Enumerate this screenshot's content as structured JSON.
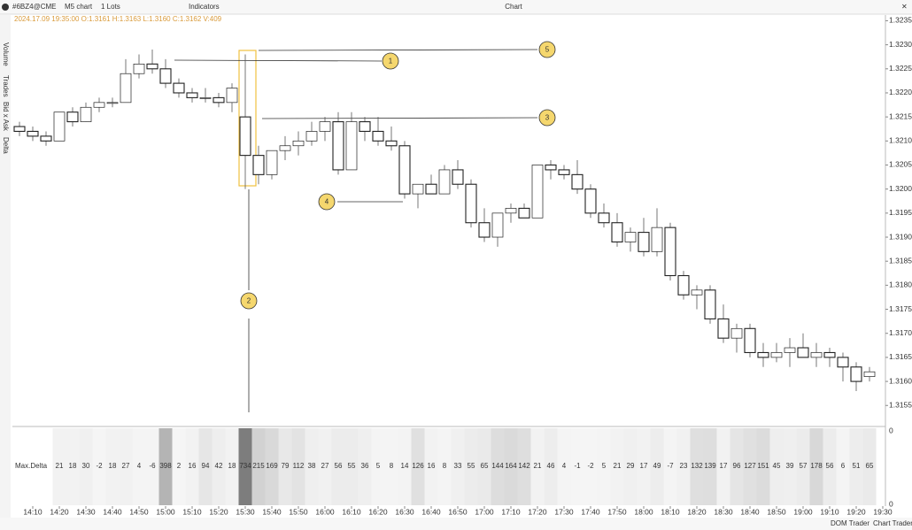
{
  "toolbar": {
    "symbol": "#6BZ4@CME",
    "timeframe": "M5 chart",
    "lots": "1 Lots",
    "indicators": "Indicators",
    "window_title": "Chart"
  },
  "info": "2024.17.09 19:35:00 O:1.3161 H:1.3163 L:1.3160 C:1.3162 V:409",
  "sidebar": [
    "Volume",
    "Trades",
    "Bid x Ask",
    "Delta"
  ],
  "annotations": [
    "1",
    "2",
    "3",
    "4",
    "5"
  ],
  "footer": [
    "DOM Trader",
    "Chart Trader"
  ],
  "chart_data": [
    {
      "type": "candlestick",
      "x": [
        "14:05",
        "14:10",
        "14:15",
        "14:20",
        "14:25",
        "14:30",
        "14:35",
        "14:40",
        "14:45",
        "14:50",
        "14:55",
        "15:00",
        "15:05",
        "15:10",
        "15:15",
        "15:20",
        "15:25",
        "15:30",
        "15:35",
        "15:40",
        "15:45",
        "15:50",
        "15:55",
        "16:00",
        "16:05",
        "16:10",
        "16:15",
        "16:20",
        "16:25",
        "16:30",
        "16:35",
        "16:40",
        "16:45",
        "16:50",
        "16:55",
        "17:00",
        "17:05",
        "17:10",
        "17:15",
        "17:20",
        "17:25",
        "17:30",
        "17:35",
        "17:40",
        "17:45",
        "17:50",
        "17:55",
        "18:00",
        "18:05",
        "18:10",
        "18:15",
        "18:20",
        "18:25",
        "18:30",
        "18:35",
        "18:40",
        "18:45",
        "18:50",
        "18:55",
        "19:00",
        "19:05",
        "19:10",
        "19:15",
        "19:20",
        "19:25"
      ],
      "open": [
        1.3213,
        1.3212,
        1.3211,
        1.321,
        1.3216,
        1.3214,
        1.3217,
        1.3218,
        1.3218,
        1.3224,
        1.3226,
        1.3225,
        1.3222,
        1.322,
        1.3219,
        1.3219,
        1.3218,
        1.3215,
        1.3207,
        1.3203,
        1.3208,
        1.3209,
        1.321,
        1.3212,
        1.3214,
        1.3204,
        1.3214,
        1.3212,
        1.321,
        1.3209,
        1.3199,
        1.3201,
        1.3199,
        1.3204,
        1.3201,
        1.3193,
        1.319,
        1.3195,
        1.3196,
        1.3194,
        1.3205,
        1.3204,
        1.3203,
        1.32,
        1.3195,
        1.3193,
        1.3189,
        1.3191,
        1.3187,
        1.3192,
        1.3182,
        1.3178,
        1.3179,
        1.3173,
        1.3169,
        1.3171,
        1.3166,
        1.3165,
        1.3166,
        1.3167,
        1.3165,
        1.3166,
        1.3165,
        1.3163,
        1.3161
      ],
      "high": [
        1.3214,
        1.3213,
        1.3212,
        1.3216,
        1.3217,
        1.3218,
        1.3219,
        1.3219,
        1.3227,
        1.3228,
        1.3229,
        1.3227,
        1.3223,
        1.3221,
        1.3221,
        1.322,
        1.3222,
        1.3228,
        1.3209,
        1.3208,
        1.3211,
        1.3212,
        1.3214,
        1.3215,
        1.3216,
        1.3216,
        1.3215,
        1.3215,
        1.3213,
        1.321,
        1.3201,
        1.3203,
        1.3205,
        1.3206,
        1.3202,
        1.3196,
        1.3195,
        1.3197,
        1.3197,
        1.3205,
        1.3206,
        1.3205,
        1.3206,
        1.3201,
        1.3197,
        1.3195,
        1.3192,
        1.3194,
        1.3196,
        1.3193,
        1.3183,
        1.318,
        1.318,
        1.3176,
        1.3172,
        1.3172,
        1.3168,
        1.3168,
        1.3169,
        1.317,
        1.3168,
        1.3167,
        1.3166,
        1.3164,
        1.3163
      ],
      "low": [
        1.3211,
        1.321,
        1.3209,
        1.321,
        1.3213,
        1.3214,
        1.3216,
        1.3217,
        1.3218,
        1.3223,
        1.3224,
        1.3221,
        1.3219,
        1.3218,
        1.3218,
        1.3217,
        1.3216,
        1.32,
        1.3201,
        1.3202,
        1.3206,
        1.3207,
        1.3209,
        1.321,
        1.3203,
        1.3204,
        1.321,
        1.3209,
        1.3208,
        1.3198,
        1.3196,
        1.3199,
        1.3199,
        1.32,
        1.3192,
        1.3189,
        1.3188,
        1.3193,
        1.3194,
        1.3194,
        1.3202,
        1.3202,
        1.3199,
        1.3194,
        1.3192,
        1.3188,
        1.3187,
        1.3186,
        1.3186,
        1.3181,
        1.3177,
        1.3175,
        1.3172,
        1.3168,
        1.3166,
        1.3165,
        1.3163,
        1.3164,
        1.3163,
        1.3165,
        1.3163,
        1.3163,
        1.316,
        1.3158,
        1.316
      ],
      "close": [
        1.3212,
        1.3211,
        1.321,
        1.3216,
        1.3214,
        1.3217,
        1.3218,
        1.3218,
        1.3224,
        1.3226,
        1.3225,
        1.3222,
        1.322,
        1.3219,
        1.3219,
        1.3218,
        1.3221,
        1.3207,
        1.3203,
        1.3208,
        1.3209,
        1.321,
        1.3212,
        1.3214,
        1.3204,
        1.3214,
        1.3212,
        1.321,
        1.3209,
        1.3199,
        1.3201,
        1.3199,
        1.3204,
        1.3201,
        1.3193,
        1.319,
        1.3195,
        1.3196,
        1.3194,
        1.3205,
        1.3204,
        1.3203,
        1.32,
        1.3195,
        1.3193,
        1.3189,
        1.3191,
        1.3187,
        1.3192,
        1.3182,
        1.3178,
        1.3179,
        1.3173,
        1.3169,
        1.3171,
        1.3166,
        1.3165,
        1.3166,
        1.3167,
        1.3165,
        1.3166,
        1.3165,
        1.3163,
        1.316,
        1.3162
      ],
      "ylim": [
        1.3151,
        1.3236
      ],
      "yticks": [
        1.3235,
        {
          "value": 1.323,
          "label": "1.3230"
        },
        1.3225,
        {
          "value": 1.322,
          "label": "1.3220"
        },
        1.3215,
        {
          "value": 1.321,
          "label": "1.3210"
        },
        1.3205,
        {
          "value": 1.32,
          "label": "1.3200"
        },
        1.3195,
        {
          "value": 1.319,
          "label": "1.3190"
        },
        1.3185,
        {
          "value": 1.318,
          "label": "1.3180"
        },
        1.3175,
        {
          "value": 1.317,
          "label": "1.3170"
        },
        1.3165,
        {
          "value": 1.316,
          "label": "1.3160"
        },
        1.3155
      ],
      "xticks": [
        "14:10",
        "14:20",
        "14:30",
        "14:40",
        "14:50",
        "15:00",
        "15:10",
        "15:20",
        "15:30",
        "15:40",
        "15:50",
        "16:00",
        "16:10",
        "16:20",
        "16:30",
        "16:40",
        "16:50",
        "17:00",
        "17:10",
        "17:20",
        "17:30",
        "17:40",
        "17:50",
        "18:00",
        "18:10",
        "18:20",
        "18:30",
        "18:40",
        "18:50",
        "19:00",
        "19:10",
        "19:20",
        "19:30"
      ],
      "color": "#222222"
    },
    {
      "type": "heatmap",
      "title": "Max.Delta",
      "x": [
        "14:20",
        "14:25",
        "14:30",
        "14:35",
        "14:40",
        "14:45",
        "14:50",
        "14:55",
        "15:00",
        "15:05",
        "15:10",
        "15:15",
        "15:20",
        "15:25",
        "15:30",
        "15:35",
        "15:40",
        "15:45",
        "15:50",
        "15:55",
        "16:00",
        "16:05",
        "16:10",
        "16:15",
        "16:20",
        "16:25",
        "16:30",
        "16:35",
        "16:40",
        "16:45",
        "16:50",
        "16:55",
        "17:00",
        "17:05",
        "17:10",
        "17:15",
        "17:20",
        "17:25",
        "17:30",
        "17:35",
        "17:40",
        "17:45",
        "17:50",
        "17:55",
        "18:00",
        "18:05",
        "18:10",
        "18:15",
        "18:20",
        "18:25",
        "18:30",
        "18:35",
        "18:40",
        "18:45",
        "18:50",
        "18:55",
        "19:00",
        "19:05",
        "19:10",
        "19:15",
        "19:20",
        "19:25"
      ],
      "values": [
        21,
        18,
        30,
        -2,
        18,
        27,
        4,
        -6,
        398,
        2,
        16,
        94,
        42,
        18,
        734,
        215,
        169,
        79,
        112,
        38,
        27,
        56,
        55,
        36,
        5,
        8,
        14,
        126,
        16,
        8,
        33,
        55,
        65,
        144,
        164,
        142,
        21,
        46,
        4,
        -1,
        -2,
        5,
        21,
        29,
        17,
        49,
        -7,
        23,
        132,
        139,
        17,
        96,
        127,
        151,
        45,
        39,
        57,
        178,
        56,
        6,
        51,
        65
      ],
      "yticks": [
        0,
        0
      ],
      "color": "#555555"
    }
  ]
}
